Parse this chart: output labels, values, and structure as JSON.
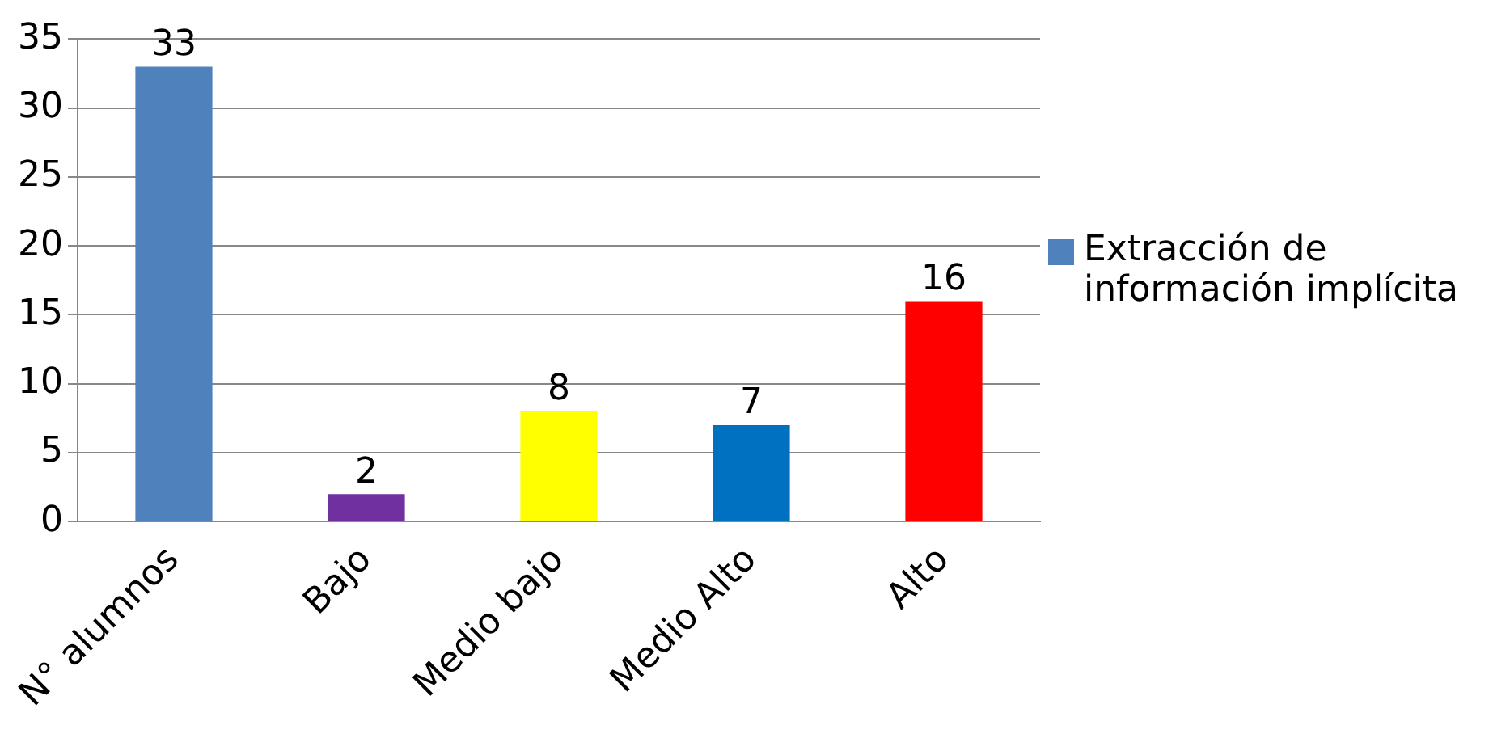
{
  "chart_data": {
    "type": "bar",
    "categories": [
      "N° alumnos",
      "Bajo",
      "Medio bajo",
      "Medio Alto",
      "Alto"
    ],
    "series": [
      {
        "name": "Extracción de información implícita",
        "color": "#4f81bd",
        "colors": [
          "#4f81bd",
          "#7030a0",
          "#ffff00",
          "#0070c0",
          "#ff0000"
        ],
        "values": [
          33,
          2,
          8,
          7,
          16
        ]
      }
    ],
    "ylim": [
      0,
      35
    ],
    "yticks": [
      0,
      5,
      10,
      15,
      20,
      25,
      30,
      35
    ],
    "grid": "y",
    "legend": "right",
    "data_labels": true
  }
}
